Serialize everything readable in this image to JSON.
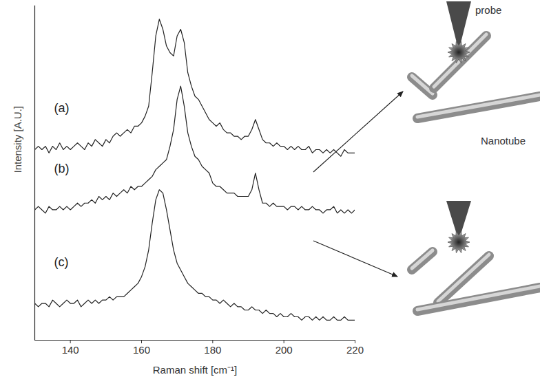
{
  "chart_data": {
    "type": "line",
    "x_label": "Raman shift [cm⁻¹]",
    "y_label": "Intensity [A.U.]",
    "x": [
      130,
      131,
      132,
      133,
      134,
      135,
      136,
      137,
      138,
      139,
      140,
      141,
      142,
      143,
      144,
      145,
      146,
      147,
      148,
      149,
      150,
      151,
      152,
      153,
      154,
      155,
      156,
      157,
      158,
      159,
      160,
      161,
      162,
      163,
      164,
      165,
      166,
      167,
      168,
      169,
      170,
      171,
      172,
      173,
      174,
      175,
      176,
      177,
      178,
      179,
      180,
      181,
      182,
      183,
      184,
      185,
      186,
      187,
      188,
      189,
      190,
      191,
      192,
      193,
      194,
      195,
      196,
      197,
      198,
      199,
      200,
      201,
      202,
      203,
      204,
      205,
      206,
      207,
      208,
      209,
      210,
      211,
      212,
      213,
      214,
      215,
      216,
      217,
      218,
      219,
      220
    ],
    "series": [
      {
        "name": "(a)",
        "color": "#222222",
        "values": [
          57,
          58,
          57,
          58,
          56,
          58,
          57,
          59,
          57,
          58,
          57,
          58,
          59,
          58,
          57,
          59,
          58,
          60,
          59,
          58,
          60,
          59,
          61,
          62,
          61,
          62,
          63,
          62,
          64,
          64,
          65,
          67,
          70,
          80,
          91,
          96,
          93,
          88,
          86,
          85,
          91,
          93,
          89,
          80,
          76,
          73,
          72,
          70,
          68,
          66,
          65,
          64,
          65,
          63,
          62,
          62,
          61,
          61,
          60,
          61,
          61,
          63,
          66,
          63,
          60,
          59,
          59,
          58,
          59,
          58,
          58,
          57,
          58,
          57,
          58,
          57,
          57,
          58,
          56,
          57,
          57,
          56,
          57,
          56,
          57,
          56,
          55,
          57,
          56,
          56,
          56
        ]
      },
      {
        "name": "(b)",
        "color": "#222222",
        "values": [
          39,
          40,
          39,
          38,
          40,
          39,
          39,
          40,
          39,
          40,
          39,
          40,
          41,
          40,
          41,
          41,
          42,
          41,
          43,
          42,
          43,
          42,
          44,
          43,
          44,
          45,
          44,
          46,
          45,
          46,
          46,
          47,
          48,
          49,
          51,
          52,
          53,
          54,
          58,
          63,
          72,
          76,
          70,
          62,
          58,
          55,
          54,
          52,
          51,
          50,
          47,
          46,
          46,
          45,
          44,
          44,
          44,
          43,
          43,
          43,
          43,
          45,
          50,
          45,
          41,
          41,
          40,
          41,
          40,
          40,
          40,
          39,
          40,
          40,
          39,
          40,
          39,
          39,
          40,
          39,
          39,
          38,
          39,
          39,
          40,
          38,
          39,
          38,
          39,
          38,
          39
        ]
      },
      {
        "name": "(c)",
        "color": "#222222",
        "values": [
          11,
          10,
          11,
          11,
          10,
          12,
          11,
          10,
          11,
          12,
          11,
          11,
          12,
          10,
          11,
          12,
          11,
          12,
          11,
          12,
          12,
          13,
          12,
          13,
          13,
          13,
          14,
          15,
          16,
          17,
          19,
          22,
          27,
          35,
          42,
          45,
          44,
          39,
          33,
          27,
          23,
          21,
          19,
          17,
          16,
          15,
          14,
          14,
          13,
          13,
          12,
          12,
          11,
          12,
          11,
          10,
          11,
          10,
          10,
          9,
          9,
          10,
          9,
          9,
          8,
          9,
          8,
          8,
          7,
          8,
          7,
          7,
          8,
          7,
          7,
          6,
          7,
          7,
          6,
          7,
          6,
          7,
          6,
          6,
          7,
          6,
          6,
          7,
          6,
          6,
          6
        ]
      }
    ],
    "xlim": [
      130,
      220
    ],
    "xticks": [
      140,
      160,
      180,
      200,
      220
    ],
    "ylim": [
      0,
      100
    ],
    "tick_labels": "x",
    "grid": false,
    "annotations": [
      "probe",
      "Nanotube"
    ]
  }
}
